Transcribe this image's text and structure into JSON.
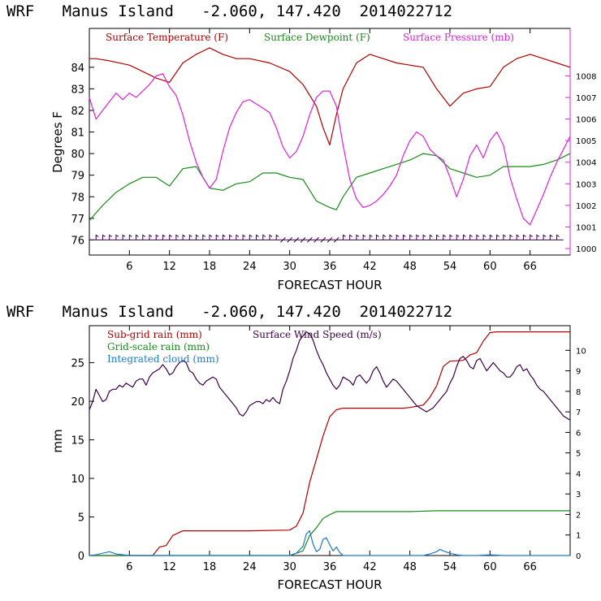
{
  "chart_data": [
    {
      "type": "line",
      "title": "WRF   Manus Island   -2.060, 147.420  2014022712",
      "xlabel": "FORECAST HOUR",
      "ylabel": "Degrees F",
      "xlim": [
        0,
        72
      ],
      "ylim": [
        75.3,
        85.8
      ],
      "y2lim": [
        999.7,
        1010.2
      ],
      "xticks": [
        "6",
        "12",
        "18",
        "24",
        "30",
        "36",
        "42",
        "48",
        "54",
        "60",
        "66"
      ],
      "yticks": [
        "76",
        "77",
        "78",
        "79",
        "80",
        "81",
        "82",
        "83",
        "84"
      ],
      "y2ticks": [
        "1000",
        "1001",
        "1002",
        "1003",
        "1004",
        "1005",
        "1006",
        "1007",
        "1008"
      ],
      "series": [
        {
          "name": "Surface Temperature (F)",
          "color": "#b00000",
          "axis": "left",
          "x": [
            0,
            1,
            3,
            6,
            8,
            10,
            12,
            14,
            16,
            18,
            20,
            22,
            24,
            27,
            30,
            32,
            34,
            35,
            36,
            37,
            38,
            40,
            42,
            44,
            46,
            48,
            50,
            52,
            54,
            56,
            58,
            60,
            62,
            64,
            66,
            68,
            70,
            72
          ],
          "values": [
            84.4,
            84.4,
            84.3,
            84.1,
            83.8,
            83.5,
            83.3,
            84.2,
            84.6,
            84.9,
            84.6,
            84.4,
            84.4,
            84.2,
            83.8,
            83.2,
            82.2,
            81.2,
            80.4,
            81.8,
            83.0,
            84.2,
            84.6,
            84.4,
            84.2,
            84.1,
            84.0,
            83.0,
            82.2,
            82.8,
            83.0,
            83.1,
            84.0,
            84.4,
            84.6,
            84.4,
            84.2,
            84.0
          ]
        },
        {
          "name": "Surface Dewpoint (F)",
          "color": "#1a8a1a",
          "axis": "left",
          "x": [
            0,
            2,
            4,
            6,
            8,
            10,
            11,
            12,
            14,
            16,
            18,
            20,
            22,
            24,
            26,
            28,
            30,
            32,
            34,
            36,
            37,
            38,
            40,
            42,
            44,
            46,
            48,
            50,
            52,
            54,
            56,
            58,
            60,
            62,
            64,
            66,
            68,
            70,
            72
          ],
          "values": [
            76.9,
            77.6,
            78.2,
            78.6,
            78.9,
            78.9,
            78.7,
            78.5,
            79.3,
            79.4,
            78.4,
            78.3,
            78.6,
            78.7,
            79.1,
            79.1,
            78.9,
            78.8,
            77.8,
            77.5,
            77.4,
            78.0,
            78.9,
            79.1,
            79.3,
            79.5,
            79.7,
            80.0,
            79.9,
            79.3,
            79.1,
            78.9,
            79.0,
            79.4,
            79.4,
            79.4,
            79.5,
            79.7,
            80.0
          ]
        },
        {
          "name": "Surface Pressure (mb)",
          "color": "#e020e0",
          "axis": "right",
          "x": [
            0,
            1,
            2,
            3,
            4,
            5,
            6,
            7,
            8,
            9,
            10,
            11,
            12,
            13,
            14,
            15,
            16,
            17,
            18,
            19,
            20,
            21,
            22,
            23,
            24,
            25,
            26,
            27,
            28,
            29,
            30,
            31,
            32,
            33,
            34,
            35,
            36,
            37,
            38,
            39,
            40,
            41,
            42,
            43,
            44,
            45,
            46,
            47,
            48,
            49,
            50,
            51,
            52,
            53,
            54,
            55,
            56,
            57,
            58,
            59,
            60,
            61,
            62,
            63,
            64,
            65,
            66,
            67,
            68,
            69,
            70,
            71,
            72
          ],
          "values": [
            1007.0,
            1006.0,
            1006.4,
            1006.8,
            1007.2,
            1006.9,
            1007.2,
            1007.0,
            1007.3,
            1007.6,
            1008.0,
            1008.1,
            1007.5,
            1007.1,
            1006.2,
            1005.0,
            1004.0,
            1003.3,
            1002.8,
            1003.2,
            1004.5,
            1005.6,
            1006.3,
            1006.8,
            1006.9,
            1006.7,
            1006.5,
            1006.3,
            1005.6,
            1004.7,
            1004.2,
            1004.5,
            1005.2,
            1006.2,
            1007.0,
            1007.3,
            1007.3,
            1006.6,
            1004.8,
            1003.2,
            1002.3,
            1001.9,
            1002.0,
            1002.2,
            1002.5,
            1002.9,
            1003.4,
            1004.3,
            1005.0,
            1005.4,
            1005.2,
            1004.6,
            1004.3,
            1004.1,
            1003.3,
            1002.4,
            1003.2,
            1004.3,
            1004.8,
            1004.2,
            1005.0,
            1005.4,
            1004.8,
            1003.3,
            1002.3,
            1001.4,
            1001.1,
            1001.8,
            1002.5,
            1003.3,
            1004.0,
            1004.6,
            1005.2
          ]
        }
      ],
      "wind_barb_row_value": 76.0,
      "legend": [
        "Surface Temperature (F)",
        "Surface Dewpoint (F)",
        "Surface Pressure (mb)"
      ],
      "legend_colors": [
        "#b00000",
        "#1a8a1a",
        "#e020e0"
      ]
    },
    {
      "type": "line",
      "title": "WRF   Manus Island   -2.060, 147.420  2014022712",
      "xlabel": "FORECAST HOUR",
      "ylabel": "mm",
      "xlim": [
        0,
        72
      ],
      "ylim": [
        0,
        29.8
      ],
      "y2lim": [
        0,
        11.2
      ],
      "xticks": [
        "6",
        "12",
        "18",
        "24",
        "30",
        "36",
        "42",
        "48",
        "54",
        "60",
        "66"
      ],
      "yticks": [
        "0",
        "5",
        "10",
        "15",
        "20",
        "25"
      ],
      "y2ticks": [
        "0",
        "1",
        "2",
        "3",
        "4",
        "5",
        "6",
        "7",
        "8",
        "9",
        "10"
      ],
      "series": [
        {
          "name": "Sub-grid rain (mm)",
          "color": "#b00000",
          "axis": "left",
          "x": [
            0,
            9.5,
            10.5,
            11.5,
            12.5,
            14,
            18,
            24,
            30,
            31,
            32,
            33,
            34,
            35,
            36,
            37,
            38,
            40,
            44,
            47,
            48,
            50,
            51,
            52,
            53,
            54,
            56,
            57,
            58,
            59,
            60,
            61,
            62,
            64,
            66,
            68,
            70,
            72
          ],
          "values": [
            0,
            0,
            1.1,
            1.3,
            2.6,
            3.2,
            3.2,
            3.2,
            3.3,
            3.8,
            5.5,
            9.5,
            12.5,
            15.5,
            18.0,
            18.9,
            19.1,
            19.1,
            19.1,
            19.1,
            19.2,
            19.5,
            20.5,
            22.0,
            24.5,
            25.2,
            25.3,
            26.0,
            26.3,
            27.8,
            28.9,
            29.0,
            29.0,
            29.0,
            29.0,
            29.0,
            29.0,
            29.0
          ]
        },
        {
          "name": "Grid-scale rain (mm)",
          "color": "#1a8a1a",
          "axis": "left",
          "x": [
            0,
            30,
            32,
            33,
            34,
            35,
            36,
            37,
            40,
            44,
            48,
            52,
            56,
            60,
            64,
            68,
            72
          ],
          "values": [
            0,
            0,
            0.6,
            2.6,
            3.6,
            4.8,
            5.3,
            5.7,
            5.7,
            5.7,
            5.7,
            5.8,
            5.8,
            5.8,
            5.8,
            5.8,
            5.8
          ]
        },
        {
          "name": "Integrated cloud (mm)",
          "color": "#1a7ad0",
          "axis": "left",
          "x": [
            0,
            1,
            2,
            3,
            4,
            6,
            8,
            10,
            12,
            20,
            28,
            30,
            31,
            32,
            32.5,
            33,
            33.5,
            34,
            34.5,
            35,
            35.5,
            36,
            36.5,
            37,
            37.5,
            38,
            40,
            44,
            50,
            51,
            52,
            52.5,
            53,
            54,
            55,
            56,
            58,
            60,
            62,
            72
          ],
          "values": [
            0,
            0.1,
            0.3,
            0.5,
            0.2,
            0,
            0,
            0,
            0,
            0,
            0,
            0,
            0.3,
            1.2,
            2.8,
            3.2,
            1.5,
            0.5,
            0.8,
            2.1,
            2.3,
            1.4,
            0.6,
            1.1,
            0.4,
            0,
            0,
            0,
            0,
            0.2,
            0.5,
            0.8,
            0.6,
            0.3,
            0.1,
            0,
            0,
            0.1,
            0,
            0
          ]
        },
        {
          "name": "Surface Wind Speed (m/s)",
          "color": "#3a0046",
          "axis": "right",
          "x": [
            0,
            0.5,
            1,
            1.5,
            2,
            2.5,
            3,
            3.5,
            4,
            4.5,
            5,
            5.5,
            6,
            6.5,
            7,
            7.5,
            8,
            8.5,
            9,
            9.5,
            10,
            10.5,
            11,
            11.5,
            12,
            12.5,
            13,
            13.5,
            14,
            14.5,
            15,
            15.5,
            16,
            16.5,
            17,
            17.5,
            18,
            18.5,
            19,
            19.5,
            20,
            20.5,
            21,
            21.5,
            22,
            22.5,
            23,
            23.5,
            24,
            24.5,
            25,
            25.5,
            26,
            26.5,
            27,
            27.5,
            28,
            28.5,
            29,
            29.5,
            30,
            30.5,
            31,
            31.5,
            32,
            32.5,
            33,
            33.5,
            34,
            34.5,
            35,
            35.5,
            36,
            36.5,
            37,
            37.5,
            38,
            38.5,
            39,
            39.5,
            40,
            40.5,
            41,
            41.5,
            42,
            42.5,
            43,
            43.5,
            44,
            44.5,
            45,
            45.5,
            46,
            46.5,
            47,
            47.5,
            48,
            48.5,
            49,
            49.5,
            50,
            50.5,
            51,
            51.5,
            52,
            52.5,
            53,
            53.5,
            54,
            54.5,
            55,
            55.5,
            56,
            56.5,
            57,
            57.5,
            58,
            58.5,
            59,
            59.5,
            60,
            60.5,
            61,
            61.5,
            62,
            62.5,
            63,
            63.5,
            64,
            64.5,
            65,
            65.5,
            66,
            66.5,
            67,
            67.5,
            68,
            68.5,
            69,
            69.5,
            70,
            70.5,
            71,
            71.5,
            72
          ],
          "values": [
            7.1,
            7.5,
            8.1,
            7.8,
            7.5,
            7.6,
            8.0,
            8.1,
            8.1,
            8.3,
            8.2,
            8.4,
            8.3,
            8.2,
            8.5,
            8.6,
            8.6,
            8.3,
            8.7,
            8.9,
            9.0,
            9.1,
            9.3,
            9.1,
            8.8,
            8.9,
            9.2,
            9.4,
            9.5,
            9.4,
            9.0,
            8.9,
            8.6,
            8.4,
            8.3,
            8.5,
            8.6,
            8.7,
            8.6,
            8.2,
            8.0,
            7.8,
            7.6,
            7.4,
            7.2,
            6.9,
            6.8,
            7.0,
            7.3,
            7.4,
            7.5,
            7.5,
            7.4,
            7.6,
            7.5,
            7.7,
            7.5,
            7.4,
            8.1,
            8.5,
            9.0,
            9.6,
            10.0,
            10.5,
            10.7,
            10.9,
            10.8,
            10.5,
            10.0,
            9.6,
            9.3,
            8.9,
            8.6,
            8.3,
            8.1,
            8.3,
            8.7,
            8.6,
            8.5,
            8.3,
            8.7,
            8.8,
            8.6,
            8.4,
            8.6,
            9.0,
            9.2,
            8.9,
            8.5,
            8.2,
            8.4,
            8.6,
            8.5,
            8.3,
            8.1,
            7.9,
            7.7,
            7.5,
            7.3,
            7.2,
            7.1,
            7.0,
            7.1,
            7.2,
            7.4,
            7.6,
            7.8,
            8.0,
            8.4,
            8.7,
            9.2,
            9.6,
            9.7,
            9.5,
            9.2,
            9.1,
            9.5,
            9.6,
            9.3,
            9.0,
            9.2,
            9.4,
            9.2,
            9.0,
            8.9,
            8.7,
            8.7,
            8.9,
            9.2,
            9.3,
            9.0,
            9.1,
            8.8,
            8.6,
            8.3,
            8.1,
            8.0,
            7.8,
            7.6,
            7.4,
            7.2,
            7.0,
            6.8,
            6.7,
            6.6
          ]
        }
      ],
      "legend": [
        "Sub-grid rain (mm)",
        "Grid-scale rain (mm)",
        "Integrated cloud (mm)",
        "Surface Wind Speed (m/s)"
      ],
      "legend_colors": [
        "#b00000",
        "#1a8a1a",
        "#1a7ad0",
        "#3a0046"
      ]
    }
  ]
}
